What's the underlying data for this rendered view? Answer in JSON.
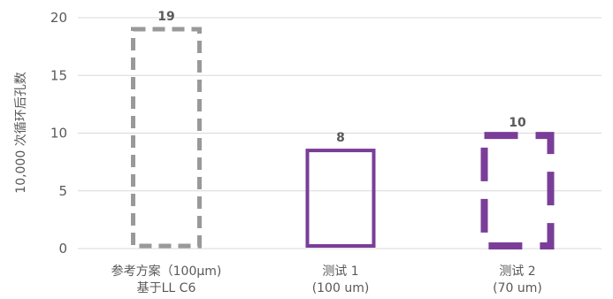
{
  "chart_data": {
    "type": "bar",
    "title": "",
    "xlabel": "",
    "ylabel": "10,000 次循环后孔数",
    "ylim": [
      0,
      20
    ],
    "yticks": [
      0,
      5,
      10,
      15,
      20
    ],
    "grid": true,
    "categories": [
      [
        "参考方案（100μm)",
        "基于LL C6"
      ],
      [
        "测试 1",
        "(100 um)"
      ],
      [
        "测试 2",
        "(70 um)"
      ]
    ],
    "values": [
      19,
      8.5,
      9.8
    ],
    "data_labels": [
      "19",
      "8",
      "10"
    ],
    "bar_styles": [
      {
        "stroke": "#999999",
        "dash": "short"
      },
      {
        "stroke": "#7a3e98",
        "dash": "solid"
      },
      {
        "stroke": "#7a3e98",
        "dash": "long"
      }
    ]
  }
}
